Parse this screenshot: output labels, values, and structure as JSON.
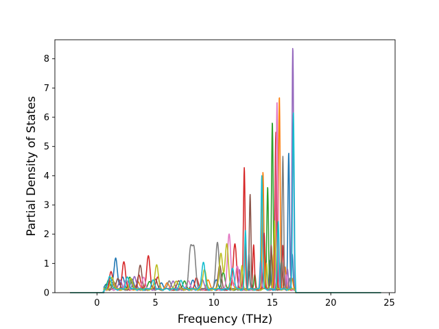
{
  "chart_data": {
    "type": "line",
    "title": "",
    "xlabel": "Frequency (THz)",
    "ylabel": "Partial Density of States",
    "xlim": [
      -3.6,
      25.5
    ],
    "ylim": [
      0,
      8.65
    ],
    "xticks": [
      "0",
      "5",
      "10",
      "15",
      "20",
      "25"
    ],
    "xtick_values": [
      0,
      5,
      10,
      15,
      20,
      25
    ],
    "yticks": [
      "0",
      "1",
      "2",
      "3",
      "4",
      "5",
      "6",
      "7",
      "8"
    ],
    "ytick_values": [
      0,
      1,
      2,
      3,
      4,
      5,
      6,
      7,
      8
    ],
    "grid": false,
    "legend": "none",
    "x_range_of_data": [
      -2.3,
      24.3
    ],
    "series": [
      {
        "color": "#1f77b4",
        "peaks": [
          [
            0.8,
            0.15
          ],
          [
            1.2,
            0.3
          ],
          [
            1.6,
            1.07
          ],
          [
            2.2,
            0.4
          ],
          [
            3.0,
            0.35
          ],
          [
            5.5,
            0.25
          ],
          [
            8.2,
            0.35
          ],
          [
            10.2,
            0.3
          ],
          [
            13.0,
            0.6
          ],
          [
            14.8,
            1.0
          ],
          [
            15.6,
            0.9
          ],
          [
            16.4,
            4.72
          ],
          [
            16.7,
            1.2
          ]
        ]
      },
      {
        "color": "#ff7f0e",
        "peaks": [
          [
            1.5,
            0.2
          ],
          [
            3.5,
            0.25
          ],
          [
            6.0,
            0.2
          ],
          [
            9.5,
            0.3
          ],
          [
            11.5,
            0.4
          ],
          [
            14.2,
            4.0
          ],
          [
            15.1,
            1.2
          ],
          [
            15.6,
            6.6
          ],
          [
            16.1,
            0.8
          ],
          [
            16.7,
            0.35
          ]
        ]
      },
      {
        "color": "#2ca02c",
        "peaks": [
          [
            1.0,
            0.3
          ],
          [
            2.8,
            0.4
          ],
          [
            4.5,
            0.3
          ],
          [
            7.5,
            0.3
          ],
          [
            10.8,
            0.6
          ],
          [
            13.5,
            0.5
          ],
          [
            14.6,
            3.5
          ],
          [
            15.0,
            5.75
          ],
          [
            15.8,
            1.1
          ]
        ]
      },
      {
        "color": "#d62728",
        "peaks": [
          [
            1.2,
            0.6
          ],
          [
            2.3,
            0.92
          ],
          [
            3.6,
            0.5
          ],
          [
            4.4,
            1.14
          ],
          [
            5.2,
            0.4
          ],
          [
            8.5,
            0.4
          ],
          [
            11.8,
            1.55
          ],
          [
            12.6,
            4.15
          ],
          [
            13.4,
            1.5
          ],
          [
            14.3,
            1.9
          ],
          [
            15.3,
            5.35
          ],
          [
            15.9,
            1.5
          ]
        ]
      },
      {
        "color": "#9467bd",
        "peaks": [
          [
            2.0,
            0.3
          ],
          [
            3.2,
            0.45
          ],
          [
            6.5,
            0.3
          ],
          [
            9.0,
            0.35
          ],
          [
            12.2,
            0.7
          ],
          [
            14.0,
            1.0
          ],
          [
            15.5,
            1.3
          ],
          [
            16.3,
            0.7
          ],
          [
            16.75,
            8.28
          ]
        ]
      },
      {
        "color": "#8c564b",
        "peaks": [
          [
            1.8,
            0.4
          ],
          [
            3.7,
            0.8
          ],
          [
            5.0,
            0.35
          ],
          [
            7.0,
            0.3
          ],
          [
            10.5,
            0.8
          ],
          [
            13.1,
            3.27
          ],
          [
            14.9,
            1.5
          ],
          [
            15.8,
            0.9
          ]
        ]
      },
      {
        "color": "#e377c2",
        "peaks": [
          [
            2.5,
            0.3
          ],
          [
            4.0,
            0.4
          ],
          [
            7.8,
            0.3
          ],
          [
            11.3,
            1.9
          ],
          [
            12.0,
            0.8
          ],
          [
            15.4,
            6.48
          ],
          [
            16.2,
            0.5
          ]
        ]
      },
      {
        "color": "#7f7f7f",
        "peaks": [
          [
            1.4,
            0.25
          ],
          [
            3.0,
            0.3
          ],
          [
            6.2,
            0.3
          ],
          [
            8.0,
            1.33
          ],
          [
            8.3,
            1.35
          ],
          [
            10.3,
            1.6
          ],
          [
            13.0,
            1.2
          ],
          [
            15.9,
            4.58
          ],
          [
            16.5,
            0.4
          ]
        ]
      },
      {
        "color": "#bcbd22",
        "peaks": [
          [
            1.3,
            0.4
          ],
          [
            2.9,
            0.35
          ],
          [
            5.1,
            0.86
          ],
          [
            6.8,
            0.3
          ],
          [
            9.2,
            0.7
          ],
          [
            10.6,
            1.22
          ],
          [
            11.1,
            1.57
          ],
          [
            12.4,
            0.8
          ],
          [
            14.5,
            0.9
          ],
          [
            15.2,
            2.4
          ]
        ]
      },
      {
        "color": "#17becf",
        "peaks": [
          [
            1.1,
            0.45
          ],
          [
            2.6,
            0.4
          ],
          [
            4.8,
            0.3
          ],
          [
            7.2,
            0.3
          ],
          [
            9.1,
            0.93
          ],
          [
            11.6,
            0.7
          ],
          [
            12.7,
            2.0
          ],
          [
            14.1,
            3.9
          ],
          [
            15.5,
            2.3
          ],
          [
            16.8,
            6.1
          ]
        ]
      }
    ]
  }
}
